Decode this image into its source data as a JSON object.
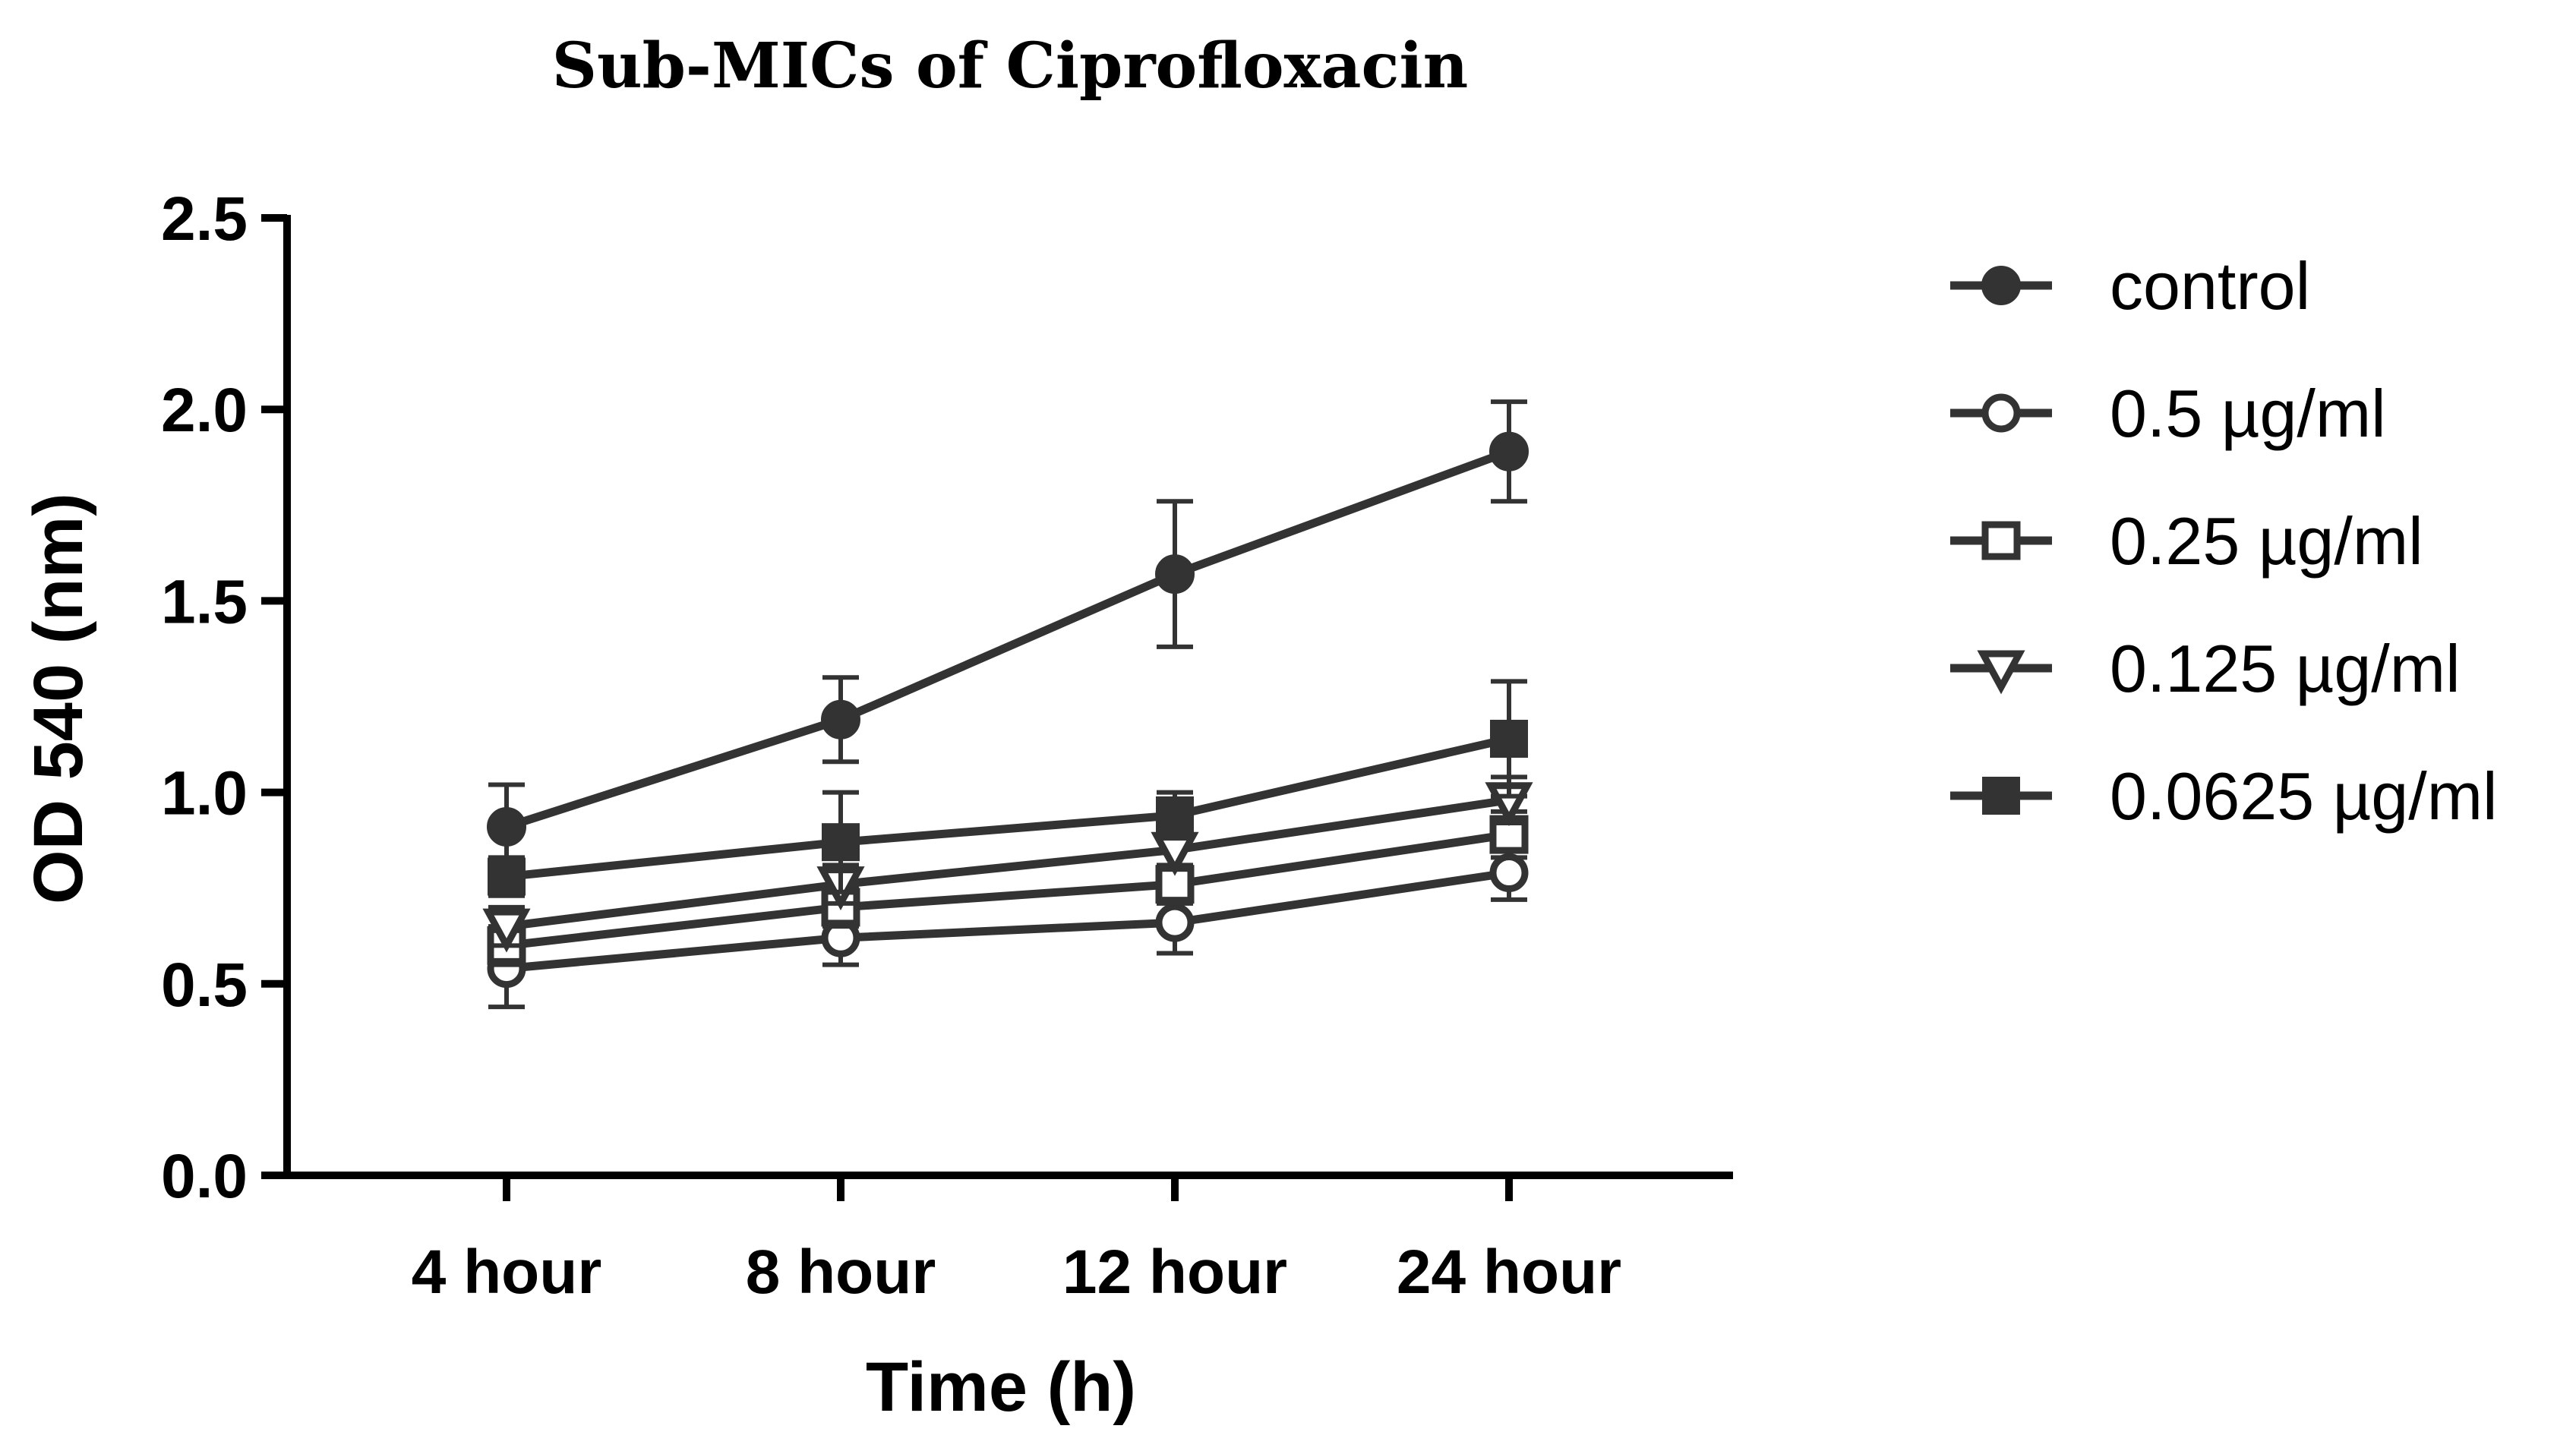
{
  "chart_data": {
    "type": "line",
    "title": "Sub-MICs of Ciprofloxacin",
    "xlabel": "Time (h)",
    "ylabel": "OD 540 (nm)",
    "categories": [
      "4 hour",
      "8 hour",
      "12 hour",
      "24 hour"
    ],
    "ylim": [
      0,
      2.5
    ],
    "yticks": [
      0.0,
      0.5,
      1.0,
      1.5,
      2.0,
      2.5
    ],
    "ytick_labels": [
      "0.0",
      "0.5",
      "1.0",
      "1.5",
      "2.0",
      "2.5"
    ],
    "grid": false,
    "legend_position": "right",
    "line_color": "#333333",
    "series": [
      {
        "name": "control",
        "marker": "circle-filled",
        "values": [
          0.91,
          1.19,
          1.57,
          1.89
        ],
        "errors": [
          0.11,
          0.11,
          0.19,
          0.13
        ]
      },
      {
        "name": "0.5 µg/ml",
        "marker": "circle-open",
        "values": [
          0.54,
          0.62,
          0.66,
          0.79
        ],
        "errors": [
          0.1,
          0.07,
          0.08,
          0.07
        ]
      },
      {
        "name": "0.25 µg/ml",
        "marker": "square-open",
        "values": [
          0.6,
          0.7,
          0.76,
          0.89
        ],
        "errors": [
          0.05,
          0.05,
          0.05,
          0.06
        ]
      },
      {
        "name": "0.125 µg/ml",
        "marker": "triangle-down-open",
        "values": [
          0.65,
          0.76,
          0.85,
          0.98
        ],
        "errors": [
          0.05,
          0.05,
          0.05,
          0.06
        ]
      },
      {
        "name": "0.0625 µg/ml",
        "marker": "square-filled",
        "values": [
          0.78,
          0.87,
          0.94,
          1.14
        ],
        "errors": [
          0.05,
          0.13,
          0.06,
          0.15
        ]
      }
    ]
  }
}
